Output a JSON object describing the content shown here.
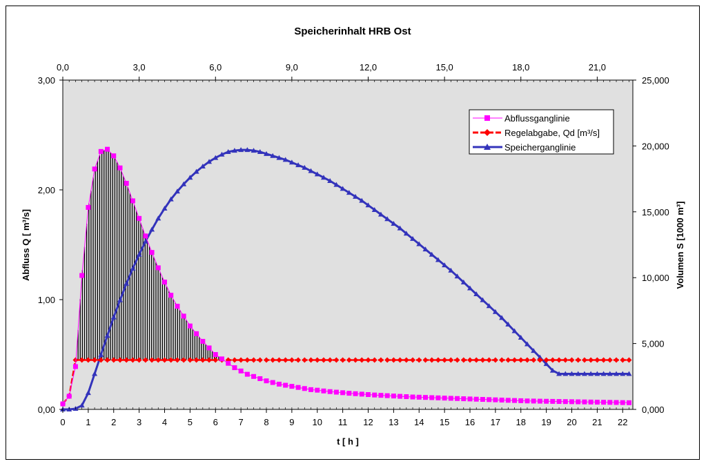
{
  "chart_data": {
    "type": "line",
    "title": "Speicherinhalt HRB Ost",
    "xlabel": "t  [ h ]",
    "ylabel": "Abfluss Q  [ m³/s]",
    "y2label": "Volumen S  [1000  m³]",
    "xlim": [
      0,
      22.4
    ],
    "ylim": [
      0,
      3.0
    ],
    "y2lim": [
      0,
      25000
    ],
    "x_ticks": [
      "0",
      "1",
      "2",
      "3",
      "4",
      "5",
      "6",
      "7",
      "8",
      "9",
      "10",
      "11",
      "12",
      "13",
      "14",
      "15",
      "16",
      "17",
      "18",
      "19",
      "20",
      "21",
      "22"
    ],
    "x_top_ticks": [
      "0,0",
      "3,0",
      "6,0",
      "9,0",
      "12,0",
      "15,0",
      "18,0",
      "21,0"
    ],
    "y_ticks": [
      "0,00",
      "1,00",
      "2,00",
      "3,00"
    ],
    "y2_ticks": [
      "0,000",
      "5,000",
      "10,000",
      "15,000",
      "20,000",
      "25,000"
    ],
    "legend_position": "top-right",
    "grid": false,
    "plot_background": "#e0e0e0",
    "series": [
      {
        "name": "Abflussganglinie",
        "color": "#ff00ff",
        "marker": "square",
        "axis": "left",
        "x": [
          0.0,
          0.25,
          0.5,
          0.75,
          1.0,
          1.25,
          1.5,
          1.75,
          2.0,
          2.25,
          2.5,
          2.75,
          3.0,
          3.25,
          3.5,
          3.75,
          4.0,
          4.25,
          4.5,
          4.75,
          5.0,
          5.25,
          5.5,
          5.75,
          6.0,
          6.25,
          6.5,
          6.75,
          7.0,
          7.25,
          7.5,
          7.75,
          8.0,
          8.25,
          8.5,
          8.75,
          9.0,
          9.25,
          9.5,
          9.75,
          10.0,
          10.25,
          10.5,
          10.75,
          11.0,
          11.25,
          11.5,
          11.75,
          12.0,
          12.25,
          12.5,
          12.75,
          13.0,
          13.25,
          13.5,
          13.75,
          14.0,
          14.25,
          14.5,
          14.75,
          15.0,
          15.25,
          15.5,
          15.75,
          16.0,
          16.25,
          16.5,
          16.75,
          17.0,
          17.25,
          17.5,
          17.75,
          18.0,
          18.25,
          18.5,
          18.75,
          19.0,
          19.25,
          19.5,
          19.75,
          20.0,
          20.25,
          20.5,
          20.75,
          21.0,
          21.25,
          21.5,
          21.75,
          22.0,
          22.25
        ],
        "values": [
          0.05,
          0.12,
          0.39,
          1.22,
          1.84,
          2.19,
          2.35,
          2.37,
          2.31,
          2.2,
          2.06,
          1.9,
          1.74,
          1.58,
          1.43,
          1.29,
          1.16,
          1.04,
          0.94,
          0.85,
          0.76,
          0.69,
          0.62,
          0.56,
          0.5,
          0.46,
          0.42,
          0.38,
          0.35,
          0.32,
          0.3,
          0.28,
          0.26,
          0.245,
          0.23,
          0.22,
          0.21,
          0.2,
          0.19,
          0.18,
          0.175,
          0.168,
          0.162,
          0.157,
          0.152,
          0.147,
          0.143,
          0.139,
          0.135,
          0.131,
          0.128,
          0.125,
          0.122,
          0.119,
          0.116,
          0.113,
          0.111,
          0.109,
          0.107,
          0.105,
          0.103,
          0.101,
          0.099,
          0.097,
          0.095,
          0.093,
          0.091,
          0.089,
          0.087,
          0.085,
          0.083,
          0.081,
          0.079,
          0.077,
          0.076,
          0.075,
          0.074,
          0.073,
          0.072,
          0.071,
          0.07,
          0.069,
          0.068,
          0.067,
          0.066,
          0.065,
          0.064,
          0.063,
          0.062,
          0.061
        ]
      },
      {
        "name": "Regelabgabe, Qd [m³/s]",
        "color": "#ff0000",
        "marker": "diamond",
        "axis": "left",
        "x": [
          0.0,
          0.25,
          0.5,
          0.75,
          1.0,
          1.25,
          1.5,
          1.75,
          2.0,
          2.25,
          2.5,
          2.75,
          3.0,
          3.25,
          3.5,
          3.75,
          4.0,
          4.25,
          4.5,
          4.75,
          5.0,
          5.25,
          5.5,
          5.75,
          6.0,
          6.25,
          6.5,
          6.75,
          7.0,
          7.25,
          7.5,
          7.75,
          8.0,
          8.25,
          8.5,
          8.75,
          9.0,
          9.25,
          9.5,
          9.75,
          10.0,
          10.25,
          10.5,
          10.75,
          11.0,
          11.25,
          11.5,
          11.75,
          12.0,
          12.25,
          12.5,
          12.75,
          13.0,
          13.25,
          13.5,
          13.75,
          14.0,
          14.25,
          14.5,
          14.75,
          15.0,
          15.25,
          15.5,
          15.75,
          16.0,
          16.25,
          16.5,
          16.75,
          17.0,
          17.25,
          17.5,
          17.75,
          18.0,
          18.25,
          18.5,
          18.75,
          19.0,
          19.25,
          19.5,
          19.75,
          20.0,
          20.25,
          20.5,
          20.75,
          21.0,
          21.25,
          21.5,
          21.75,
          22.0,
          22.25
        ],
        "values": [
          0.05,
          0.12,
          0.45,
          0.45,
          0.45,
          0.45,
          0.45,
          0.45,
          0.45,
          0.45,
          0.45,
          0.45,
          0.45,
          0.45,
          0.45,
          0.45,
          0.45,
          0.45,
          0.45,
          0.45,
          0.45,
          0.45,
          0.45,
          0.45,
          0.45,
          0.45,
          0.45,
          0.45,
          0.45,
          0.45,
          0.45,
          0.45,
          0.45,
          0.45,
          0.45,
          0.45,
          0.45,
          0.45,
          0.45,
          0.45,
          0.45,
          0.45,
          0.45,
          0.45,
          0.45,
          0.45,
          0.45,
          0.45,
          0.45,
          0.45,
          0.45,
          0.45,
          0.45,
          0.45,
          0.45,
          0.45,
          0.45,
          0.45,
          0.45,
          0.45,
          0.45,
          0.45,
          0.45,
          0.45,
          0.45,
          0.45,
          0.45,
          0.45,
          0.45,
          0.45,
          0.45,
          0.45,
          0.45,
          0.45,
          0.45,
          0.45,
          0.45,
          0.45,
          0.45,
          0.45,
          0.45,
          0.45,
          0.45,
          0.45,
          0.45,
          0.45,
          0.45,
          0.45,
          0.45,
          0.45
        ]
      },
      {
        "name": "Speicherganglinie",
        "color": "#3333bb",
        "marker": "triangle",
        "axis": "right",
        "x": [
          0.0,
          0.25,
          0.5,
          0.75,
          1.0,
          1.25,
          1.5,
          1.75,
          2.0,
          2.25,
          2.5,
          2.75,
          3.0,
          3.25,
          3.5,
          3.75,
          4.0,
          4.25,
          4.5,
          4.75,
          5.0,
          5.25,
          5.5,
          5.75,
          6.0,
          6.25,
          6.5,
          6.75,
          7.0,
          7.25,
          7.5,
          7.75,
          8.0,
          8.25,
          8.5,
          8.75,
          9.0,
          9.25,
          9.5,
          9.75,
          10.0,
          10.25,
          10.5,
          10.75,
          11.0,
          11.25,
          11.5,
          11.75,
          12.0,
          12.25,
          12.5,
          12.75,
          13.0,
          13.25,
          13.5,
          13.75,
          14.0,
          14.25,
          14.5,
          14.75,
          15.0,
          15.25,
          15.5,
          15.75,
          16.0,
          16.25,
          16.5,
          16.75,
          17.0,
          17.25,
          17.5,
          17.75,
          18.0,
          18.25,
          18.5,
          18.75,
          19.0,
          19.25,
          19.5,
          19.75,
          20.0,
          20.25,
          20.5,
          20.75,
          21.0,
          21.25,
          21.5,
          21.75,
          22.0,
          22.25
        ],
        "values": [
          0,
          0,
          50,
          300,
          1250,
          2700,
          4150,
          5600,
          7000,
          8300,
          9550,
          10700,
          11750,
          12750,
          13650,
          14500,
          15250,
          15950,
          16550,
          17100,
          17600,
          18050,
          18450,
          18800,
          19100,
          19350,
          19550,
          19650,
          19700,
          19700,
          19650,
          19550,
          19400,
          19250,
          19100,
          18950,
          18750,
          18550,
          18350,
          18100,
          17850,
          17600,
          17350,
          17050,
          16750,
          16450,
          16150,
          15850,
          15500,
          15150,
          14800,
          14450,
          14100,
          13750,
          13350,
          12950,
          12550,
          12150,
          11750,
          11350,
          10950,
          10550,
          10100,
          9650,
          9200,
          8750,
          8300,
          7850,
          7400,
          6950,
          6450,
          5950,
          5450,
          4950,
          4450,
          3950,
          3450,
          2950,
          2700,
          2700,
          2700,
          2700,
          2700,
          2700,
          2700,
          2700,
          2700,
          2700,
          2700,
          2700
        ]
      }
    ],
    "legend": [
      {
        "label": "Abflussganglinie",
        "color": "#ff00ff",
        "marker": "square",
        "dash": false
      },
      {
        "label": "Regelabgabe, Qd [m³/s]",
        "color": "#ff0000",
        "marker": "diamond",
        "dash": true
      },
      {
        "label": "Speicherganglinie",
        "color": "#3333bb",
        "marker": "triangle",
        "dash": false
      }
    ]
  }
}
